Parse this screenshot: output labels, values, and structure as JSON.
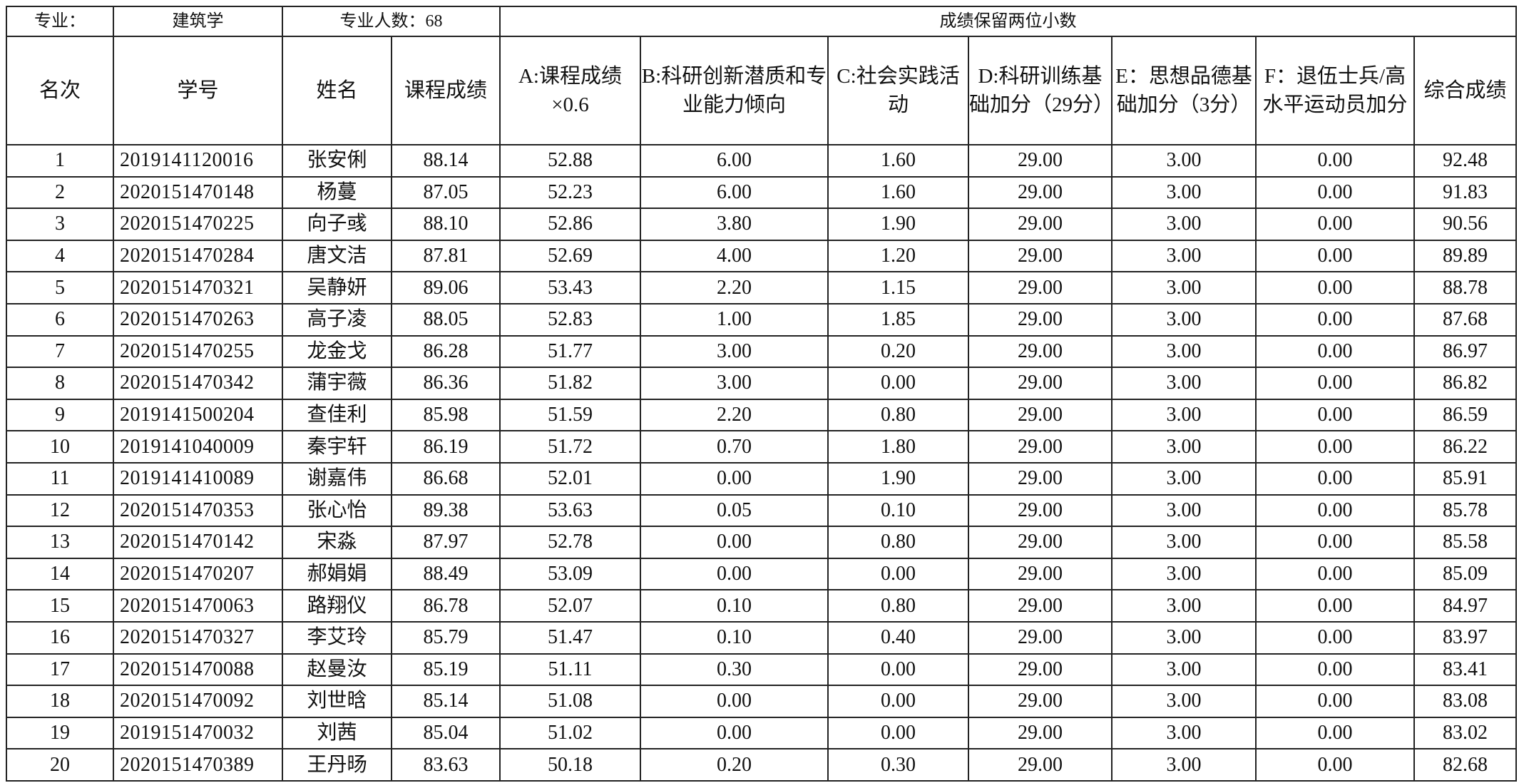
{
  "top": {
    "major_label": "专业：",
    "major_value": "建筑学",
    "count_label": "专业人数：68",
    "note": "成绩保留两位小数"
  },
  "headers": [
    "名次",
    "学号",
    "姓名",
    "课程成绩",
    "A:课程成绩×0.6",
    "B:科研创新潜质和专业能力倾向",
    "C:社会实践活动",
    "D:科研训练基础加分（29分）",
    "E：思想品德基础加分（3分）",
    "F：退伍士兵/高水平运动员加分",
    "综合成绩"
  ],
  "rows": [
    [
      "1",
      "2019141120016",
      "张安俐",
      "88.14",
      "52.88",
      "6.00",
      "1.60",
      "29.00",
      "3.00",
      "0.00",
      "92.48"
    ],
    [
      "2",
      "2020151470148",
      "杨蔓",
      "87.05",
      "52.23",
      "6.00",
      "1.60",
      "29.00",
      "3.00",
      "0.00",
      "91.83"
    ],
    [
      "3",
      "2020151470225",
      "向子彧",
      "88.10",
      "52.86",
      "3.80",
      "1.90",
      "29.00",
      "3.00",
      "0.00",
      "90.56"
    ],
    [
      "4",
      "2020151470284",
      "唐文洁",
      "87.81",
      "52.69",
      "4.00",
      "1.20",
      "29.00",
      "3.00",
      "0.00",
      "89.89"
    ],
    [
      "5",
      "2020151470321",
      "吴静妍",
      "89.06",
      "53.43",
      "2.20",
      "1.15",
      "29.00",
      "3.00",
      "0.00",
      "88.78"
    ],
    [
      "6",
      "2020151470263",
      "高子凌",
      "88.05",
      "52.83",
      "1.00",
      "1.85",
      "29.00",
      "3.00",
      "0.00",
      "87.68"
    ],
    [
      "7",
      "2020151470255",
      "龙金戈",
      "86.28",
      "51.77",
      "3.00",
      "0.20",
      "29.00",
      "3.00",
      "0.00",
      "86.97"
    ],
    [
      "8",
      "2020151470342",
      "蒲宇薇",
      "86.36",
      "51.82",
      "3.00",
      "0.00",
      "29.00",
      "3.00",
      "0.00",
      "86.82"
    ],
    [
      "9",
      "2019141500204",
      "查佳利",
      "85.98",
      "51.59",
      "2.20",
      "0.80",
      "29.00",
      "3.00",
      "0.00",
      "86.59"
    ],
    [
      "10",
      "2019141040009",
      "秦宇轩",
      "86.19",
      "51.72",
      "0.70",
      "1.80",
      "29.00",
      "3.00",
      "0.00",
      "86.22"
    ],
    [
      "11",
      "2019141410089",
      "谢嘉伟",
      "86.68",
      "52.01",
      "0.00",
      "1.90",
      "29.00",
      "3.00",
      "0.00",
      "85.91"
    ],
    [
      "12",
      "2020151470353",
      "张心怡",
      "89.38",
      "53.63",
      "0.05",
      "0.10",
      "29.00",
      "3.00",
      "0.00",
      "85.78"
    ],
    [
      "13",
      "2020151470142",
      "宋淼",
      "87.97",
      "52.78",
      "0.00",
      "0.80",
      "29.00",
      "3.00",
      "0.00",
      "85.58"
    ],
    [
      "14",
      "2020151470207",
      "郝娟娟",
      "88.49",
      "53.09",
      "0.00",
      "0.00",
      "29.00",
      "3.00",
      "0.00",
      "85.09"
    ],
    [
      "15",
      "2020151470063",
      "路翔仪",
      "86.78",
      "52.07",
      "0.10",
      "0.80",
      "29.00",
      "3.00",
      "0.00",
      "84.97"
    ],
    [
      "16",
      "2020151470327",
      "李艾玲",
      "85.79",
      "51.47",
      "0.10",
      "0.40",
      "29.00",
      "3.00",
      "0.00",
      "83.97"
    ],
    [
      "17",
      "2020151470088",
      "赵曼汝",
      "85.19",
      "51.11",
      "0.30",
      "0.00",
      "29.00",
      "3.00",
      "0.00",
      "83.41"
    ],
    [
      "18",
      "2020151470092",
      "刘世晗",
      "85.14",
      "51.08",
      "0.00",
      "0.00",
      "29.00",
      "3.00",
      "0.00",
      "83.08"
    ],
    [
      "19",
      "2019151470032",
      "刘茜",
      "85.04",
      "51.02",
      "0.00",
      "0.00",
      "29.00",
      "3.00",
      "0.00",
      "83.02"
    ],
    [
      "20",
      "2020151470389",
      "王丹旸",
      "83.63",
      "50.18",
      "0.20",
      "0.30",
      "29.00",
      "3.00",
      "0.00",
      "82.68"
    ]
  ]
}
